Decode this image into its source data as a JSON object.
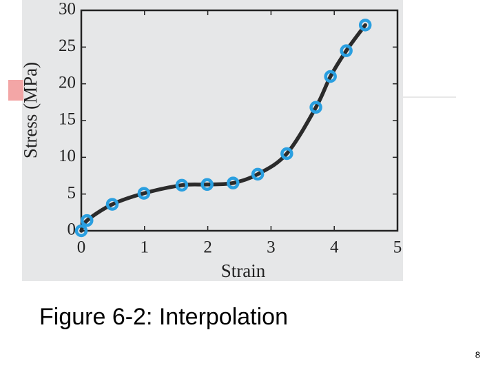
{
  "chart_data": {
    "type": "scatter",
    "xlabel": "Strain",
    "ylabel": "Stress (MPa)",
    "x": [
      0,
      0.09,
      0.49,
      0.99,
      1.59,
      1.99,
      2.4,
      2.79,
      3.25,
      3.71,
      3.94,
      4.19,
      4.49
    ],
    "values": [
      0,
      1.4,
      3.6,
      5.1,
      6.2,
      6.3,
      6.5,
      7.7,
      10.5,
      16.8,
      21.0,
      24.5,
      28.0
    ],
    "color": "#2a9fe0",
    "line_color": "#2b2b2b",
    "xlim": [
      0,
      5
    ],
    "xticks": [
      0,
      1,
      2,
      3,
      4,
      5
    ],
    "ylim": [
      0,
      30
    ],
    "yticks": [
      0,
      5,
      10,
      15,
      20,
      25,
      30
    ]
  },
  "caption": "Figure 6-2: Interpolation",
  "page_number": "8"
}
